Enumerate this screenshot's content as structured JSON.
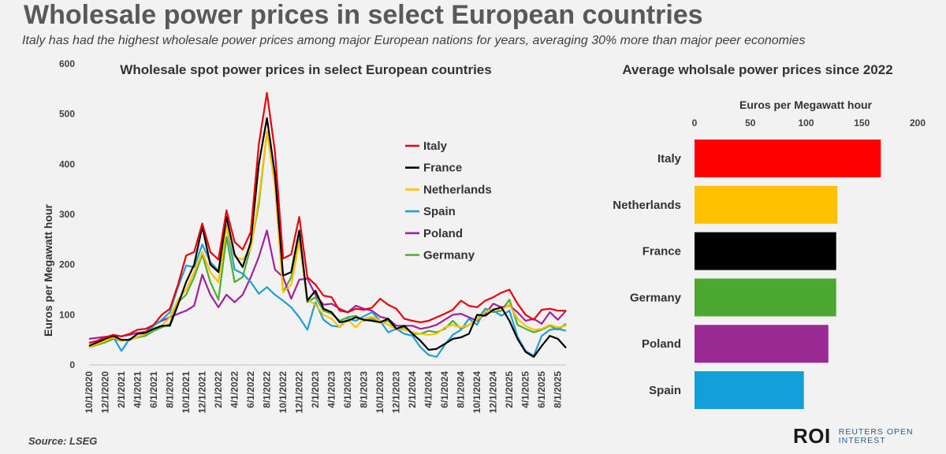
{
  "title": "Wholesale power prices in select European countries",
  "subtitle": "Italy has had the highest wholesale power prices among major European nations for years, averaging 30% more than major peer economies",
  "source": "Source: LSEG",
  "logo": {
    "mark": "ROI",
    "line1": "REUTERS OPEN",
    "line2": "INTEREST"
  },
  "chart_data": [
    {
      "type": "line",
      "title": "Wholesale spot power prices in select European countries",
      "ylabel": "Euros per Megawatt hour",
      "ylim": [
        0,
        600
      ],
      "yticks": [
        0,
        100,
        200,
        300,
        400,
        500,
        600
      ],
      "legend_position": "top-right",
      "grid": false,
      "x": [
        "10/1/2020",
        "11/1/2020",
        "12/1/2020",
        "1/1/2021",
        "2/1/2021",
        "3/1/2021",
        "4/1/2021",
        "5/1/2021",
        "6/1/2021",
        "7/1/2021",
        "8/1/2021",
        "9/1/2021",
        "10/1/2021",
        "11/1/2021",
        "12/1/2021",
        "1/1/2022",
        "2/1/2022",
        "3/1/2022",
        "4/1/2022",
        "5/1/2022",
        "6/1/2022",
        "7/1/2022",
        "8/1/2022",
        "9/1/2022",
        "10/1/2022",
        "11/1/2022",
        "12/1/2022",
        "1/1/2023",
        "2/1/2023",
        "3/1/2023",
        "4/1/2023",
        "5/1/2023",
        "6/1/2023",
        "7/1/2023",
        "8/1/2023",
        "9/1/2023",
        "10/1/2023",
        "11/1/2023",
        "12/1/2023",
        "1/1/2024",
        "2/1/2024",
        "3/1/2024",
        "4/1/2024",
        "5/1/2024",
        "6/1/2024",
        "7/1/2024",
        "8/1/2024",
        "9/1/2024",
        "10/1/2024",
        "11/1/2024",
        "12/1/2024",
        "1/1/2025",
        "2/1/2025",
        "3/1/2025",
        "4/1/2025",
        "5/1/2025",
        "6/1/2025",
        "7/1/2025",
        "8/1/2025",
        "9/1/2025"
      ],
      "xtick_labels": [
        "10/1/2020",
        "12/1/2020",
        "2/1/2021",
        "4/1/2021",
        "6/1/2021",
        "8/1/2021",
        "10/1/2021",
        "12/1/2021",
        "2/1/2022",
        "4/1/2022",
        "6/1/2022",
        "8/1/2022",
        "10/1/2022",
        "12/1/2022",
        "2/1/2023",
        "4/1/2023",
        "6/1/2023",
        "8/1/2023",
        "10/1/2023",
        "12/1/2023",
        "2/1/2024",
        "4/1/2024",
        "6/1/2024",
        "8/1/2024",
        "10/1/2024",
        "12/1/2024",
        "2/1/2025",
        "4/1/2025",
        "6/1/2025",
        "8/1/2025"
      ],
      "series": [
        {
          "name": "Italy",
          "color": "#e8000b",
          "values": [
            44,
            48,
            55,
            60,
            57,
            62,
            70,
            72,
            80,
            100,
            112,
            160,
            218,
            225,
            282,
            225,
            210,
            308,
            245,
            230,
            265,
            440,
            542,
            425,
            212,
            220,
            295,
            175,
            160,
            138,
            135,
            108,
            105,
            112,
            110,
            114,
            132,
            120,
            112,
            92,
            88,
            85,
            88,
            95,
            102,
            110,
            128,
            118,
            115,
            128,
            135,
            144,
            150,
            122,
            100,
            90,
            110,
            112,
            108,
            108
          ]
        },
        {
          "name": "France",
          "color": "#000000",
          "values": [
            38,
            45,
            52,
            58,
            50,
            50,
            62,
            64,
            72,
            78,
            78,
            120,
            165,
            200,
            276,
            200,
            185,
            295,
            220,
            195,
            245,
            400,
            492,
            380,
            178,
            185,
            268,
            128,
            148,
            112,
            105,
            85,
            88,
            95,
            90,
            88,
            85,
            92,
            72,
            78,
            62,
            48,
            30,
            32,
            42,
            52,
            55,
            62,
            100,
            98,
            110,
            115,
            88,
            52,
            26,
            16,
            38,
            58,
            52,
            34
          ]
        },
        {
          "name": "Netherlands",
          "color": "#ffc000",
          "values": [
            35,
            42,
            48,
            55,
            48,
            50,
            56,
            62,
            72,
            78,
            95,
            130,
            150,
            185,
            225,
            185,
            165,
            275,
            215,
            210,
            232,
            330,
            465,
            355,
            145,
            160,
            245,
            130,
            120,
            100,
            92,
            75,
            90,
            75,
            92,
            96,
            88,
            80,
            72,
            70,
            65,
            62,
            60,
            62,
            75,
            80,
            75,
            80,
            90,
            105,
            112,
            110,
            120,
            92,
            78,
            70,
            72,
            80,
            75,
            78
          ]
        },
        {
          "name": "Spain",
          "color": "#1e9fd6",
          "values": [
            38,
            42,
            48,
            55,
            28,
            52,
            55,
            62,
            78,
            90,
            105,
            155,
            198,
            195,
            240,
            205,
            188,
            278,
            190,
            182,
            165,
            142,
            155,
            140,
            128,
            115,
            95,
            70,
            125,
            90,
            78,
            76,
            92,
            88,
            97,
            105,
            88,
            65,
            72,
            62,
            58,
            35,
            20,
            16,
            40,
            60,
            70,
            92,
            80,
            112,
            108,
            98,
            108,
            56,
            28,
            18,
            58,
            70,
            72,
            68
          ]
        },
        {
          "name": "Poland",
          "color": "#a020a0",
          "values": [
            52,
            54,
            56,
            58,
            57,
            60,
            64,
            66,
            80,
            88,
            95,
            102,
            108,
            118,
            180,
            140,
            115,
            140,
            125,
            140,
            175,
            215,
            268,
            190,
            175,
            132,
            170,
            172,
            140,
            120,
            122,
            112,
            105,
            118,
            112,
            108,
            96,
            92,
            78,
            78,
            78,
            72,
            75,
            80,
            90,
            100,
            102,
            95,
            88,
            102,
            122,
            115,
            118,
            105,
            88,
            92,
            82,
            105,
            90,
            108
          ]
        },
        {
          "name": "Germany",
          "color": "#4caf2e",
          "values": [
            35,
            40,
            45,
            52,
            48,
            50,
            55,
            58,
            68,
            75,
            82,
            125,
            140,
            175,
            220,
            165,
            130,
            255,
            165,
            175,
            235,
            320,
            465,
            370,
            145,
            175,
            250,
            125,
            135,
            108,
            102,
            88,
            95,
            98,
            88,
            92,
            85,
            88,
            72,
            75,
            62,
            62,
            68,
            65,
            72,
            88,
            72,
            80,
            90,
            112,
            105,
            108,
            130,
            80,
            72,
            65,
            70,
            78,
            70,
            82
          ]
        }
      ]
    },
    {
      "type": "bar",
      "orientation": "horizontal",
      "title": "Average wholsale power prices since 2022",
      "xlabel": "Euros per Megawatt hour",
      "xlim": [
        0,
        200
      ],
      "xticks": [
        0,
        50,
        100,
        150,
        200
      ],
      "axis_position": "top",
      "categories": [
        "Italy",
        "Netherlands",
        "France",
        "Germany",
        "Poland",
        "Spain"
      ],
      "values": [
        167,
        128,
        127,
        127,
        120,
        98
      ],
      "colors": [
        "#ff0000",
        "#ffc000",
        "#000000",
        "#4ca832",
        "#9c2a95",
        "#13a0d8"
      ]
    }
  ]
}
